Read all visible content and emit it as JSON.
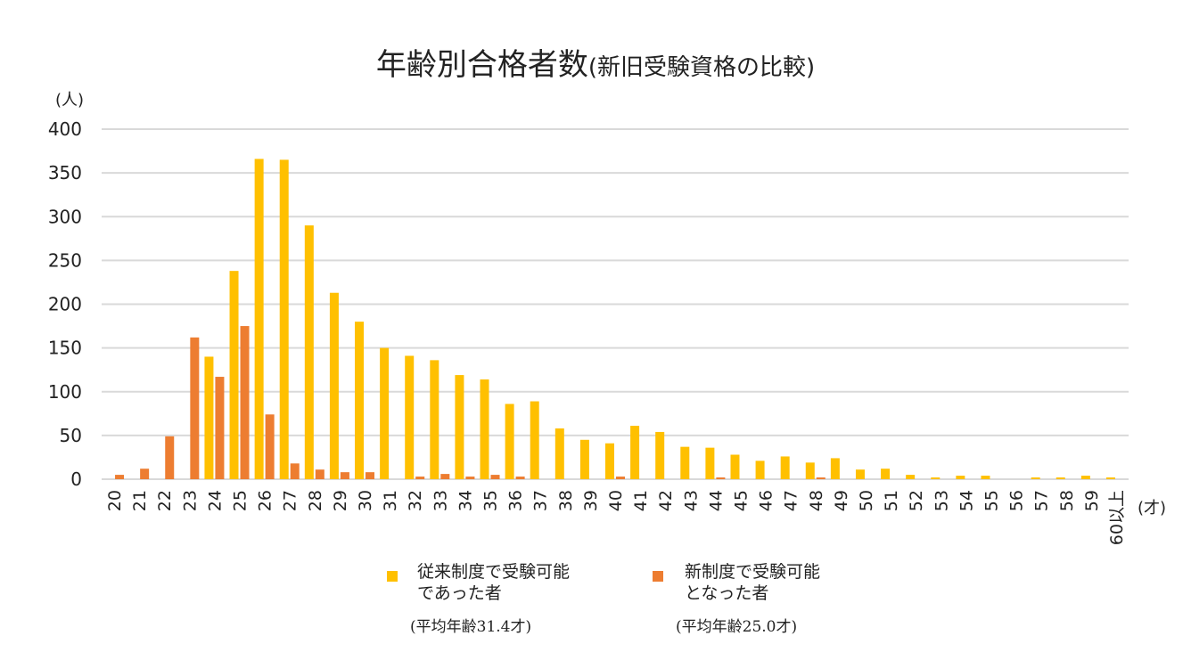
{
  "chart_data": {
    "type": "bar",
    "title": "年齢別合格者数",
    "subtitle": "(新旧受験資格の比較)",
    "y_unit_label": "(人)",
    "x_unit_label": "(才)",
    "ylim": [
      0,
      400
    ],
    "yticks": [
      0,
      50,
      100,
      150,
      200,
      250,
      300,
      350,
      400
    ],
    "grid": true,
    "legend_position": "bottom",
    "categories": [
      "20",
      "21",
      "22",
      "23",
      "24",
      "25",
      "26",
      "27",
      "28",
      "29",
      "30",
      "31",
      "32",
      "33",
      "34",
      "35",
      "36",
      "37",
      "38",
      "39",
      "40",
      "41",
      "42",
      "43",
      "44",
      "45",
      "46",
      "47",
      "48",
      "49",
      "50",
      "51",
      "52",
      "53",
      "54",
      "55",
      "56",
      "57",
      "58",
      "59",
      "60以上"
    ],
    "series": [
      {
        "name": "従来制度で受験可能であった者",
        "legend_lines": [
          "従来制度で受験可能",
          "であった者"
        ],
        "note": "(平均年齢31.4才)",
        "color": "#FFC000",
        "values": [
          0,
          0,
          0,
          0,
          140,
          238,
          366,
          365,
          290,
          213,
          180,
          150,
          141,
          136,
          119,
          114,
          86,
          89,
          58,
          45,
          41,
          61,
          54,
          37,
          36,
          28,
          21,
          26,
          19,
          24,
          11,
          12,
          5,
          2,
          4,
          4,
          0,
          2,
          2,
          4,
          2
        ]
      },
      {
        "name": "新制度で受験可能となった者",
        "legend_lines": [
          "新制度で受験可能",
          "となった者"
        ],
        "note": "(平均年齢25.0才)",
        "color": "#ED7D31",
        "values": [
          5,
          12,
          49,
          162,
          117,
          175,
          74,
          18,
          11,
          8,
          8,
          0,
          3,
          6,
          3,
          5,
          3,
          0,
          0,
          0,
          3,
          0,
          0,
          0,
          2,
          0,
          0,
          0,
          2,
          0,
          0,
          0,
          0,
          0,
          0,
          0,
          0,
          0,
          0,
          0,
          0
        ]
      }
    ]
  }
}
